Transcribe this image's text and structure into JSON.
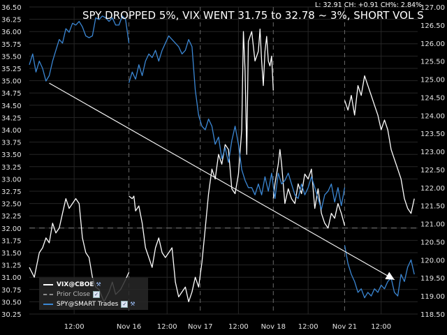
{
  "chart_data": {
    "type": "line",
    "title": "SPY DROPPED 5%, VIX WENT 31.75 to 32.78 ~ 3%, SHORT VOL S",
    "stats_readout": "L: 32.91 CH: +0.91 CH%: 2.84%",
    "grid": true,
    "legend_position": "bottom-left",
    "x_ticks": [
      "12:00",
      "Nov 16",
      "12:00",
      "Nov 17",
      "12:00",
      "Nov 18",
      "12:00",
      "Nov 21",
      "12:00"
    ],
    "x_dashed_ticks": [
      "Nov 16",
      "Nov 17",
      "Nov 18",
      "Nov 21"
    ],
    "y_left": {
      "range": [
        30.25,
        36.5
      ],
      "ticks": [
        "36.50",
        "36.25",
        "36.00",
        "35.75",
        "35.50",
        "35.25",
        "35.00",
        "34.75",
        "34.50",
        "34.25",
        "34.00",
        "33.75",
        "33.50",
        "33.25",
        "33.00",
        "32.75",
        "32.50",
        "32.25",
        "32.00",
        "31.75",
        "31.50",
        "31.25",
        "31.00",
        "30.75",
        "30.50",
        "30.25"
      ]
    },
    "y_right": {
      "range": [
        118.5,
        127.0
      ],
      "ticks": [
        "127.00",
        "126.50",
        "126.00",
        "125.50",
        "125.00",
        "124.50",
        "124.00",
        "123.50",
        "123.00",
        "122.50",
        "122.00",
        "121.50",
        "121.00",
        "120.50",
        "120.00",
        "119.50",
        "119.00",
        "118.50"
      ]
    },
    "prior_close": 32.0,
    "series": [
      {
        "name": "VIX@CBOE",
        "axis": "left",
        "color": "#ffffff",
        "segments": [
          [
            [
              0,
              31.2
            ],
            [
              3,
              31.0
            ],
            [
              6,
              31.5
            ],
            [
              8,
              31.6
            ],
            [
              10,
              31.8
            ],
            [
              12,
              31.7
            ],
            [
              14,
              32.1
            ],
            [
              16,
              31.9
            ],
            [
              18,
              32.0
            ],
            [
              20,
              32.3
            ],
            [
              22,
              32.6
            ],
            [
              24,
              32.4
            ],
            [
              26,
              32.5
            ],
            [
              28,
              32.6
            ],
            [
              30,
              32.5
            ],
            [
              32,
              31.8
            ],
            [
              34,
              31.5
            ],
            [
              36,
              31.4
            ],
            [
              38,
              31.0
            ],
            [
              40,
              30.8
            ],
            [
              42,
              30.75
            ],
            [
              45,
              30.5
            ],
            [
              48,
              30.7
            ],
            [
              50,
              30.9
            ],
            [
              52,
              30.65
            ],
            [
              55,
              30.75
            ],
            [
              58,
              30.95
            ],
            [
              60,
              31.1
            ]
          ],
          [
            [
              60,
              32.65
            ],
            [
              62,
              32.6
            ],
            [
              63,
              32.65
            ],
            [
              64,
              32.35
            ],
            [
              66,
              32.45
            ],
            [
              68,
              32.1
            ],
            [
              70,
              31.6
            ],
            [
              72,
              31.4
            ],
            [
              74,
              31.2
            ],
            [
              76,
              31.6
            ],
            [
              78,
              31.8
            ],
            [
              80,
              31.5
            ],
            [
              82,
              31.4
            ],
            [
              84,
              31.5
            ],
            [
              86,
              31.6
            ],
            [
              88,
              30.9
            ],
            [
              90,
              30.6
            ],
            [
              92,
              30.7
            ],
            [
              94,
              30.8
            ],
            [
              96,
              30.5
            ],
            [
              98,
              30.7
            ],
            [
              100,
              31.0
            ],
            [
              102,
              30.8
            ],
            [
              104,
              31.3
            ],
            [
              106,
              32.0
            ],
            [
              108,
              32.7
            ],
            [
              110,
              33.2
            ],
            [
              112,
              33.0
            ],
            [
              114,
              33.5
            ],
            [
              116,
              33.3
            ],
            [
              118,
              33.7
            ],
            [
              120,
              33.6
            ],
            [
              122,
              32.8
            ],
            [
              124,
              32.7
            ],
            [
              126,
              33.1
            ],
            [
              128,
              34.0
            ],
            [
              129,
              36.0
            ],
            [
              130,
              35.2
            ],
            [
              131,
              33.5
            ],
            [
              132,
              35.8
            ],
            [
              134,
              36.0
            ],
            [
              136,
              35.4
            ],
            [
              138,
              35.6
            ],
            [
              139,
              36.05
            ],
            [
              140,
              35.4
            ],
            [
              141,
              34.9
            ],
            [
              142,
              35.6
            ],
            [
              143,
              35.9
            ],
            [
              144,
              35.4
            ],
            [
              145,
              35.3
            ],
            [
              146,
              35.5
            ],
            [
              147,
              34.8
            ]
          ],
          [
            [
              147,
              32.6
            ],
            [
              148,
              32.9
            ],
            [
              150,
              33.3
            ],
            [
              151,
              33.6
            ],
            [
              152,
              33.3
            ],
            [
              154,
              32.5
            ],
            [
              156,
              32.8
            ],
            [
              158,
              32.6
            ],
            [
              160,
              32.5
            ],
            [
              162,
              32.9
            ],
            [
              164,
              32.7
            ],
            [
              166,
              33.1
            ],
            [
              168,
              33.0
            ],
            [
              170,
              33.2
            ],
            [
              172,
              32.4
            ],
            [
              174,
              32.8
            ],
            [
              176,
              32.3
            ],
            [
              178,
              32.1
            ],
            [
              180,
              32.0
            ],
            [
              182,
              32.3
            ],
            [
              184,
              32.2
            ],
            [
              186,
              32.5
            ],
            [
              188,
              32.3
            ],
            [
              190,
              32.05
            ]
          ],
          [
            [
              190,
              34.6
            ],
            [
              192,
              34.4
            ],
            [
              194,
              34.7
            ],
            [
              196,
              34.3
            ],
            [
              198,
              34.9
            ],
            [
              200,
              34.7
            ],
            [
              202,
              35.1
            ],
            [
              204,
              34.9
            ],
            [
              206,
              34.7
            ],
            [
              208,
              34.5
            ],
            [
              210,
              34.3
            ],
            [
              212,
              34.0
            ],
            [
              214,
              34.2
            ],
            [
              216,
              34.0
            ],
            [
              218,
              33.6
            ],
            [
              220,
              33.4
            ],
            [
              222,
              33.2
            ],
            [
              224,
              33.0
            ],
            [
              226,
              32.6
            ],
            [
              228,
              32.4
            ],
            [
              230,
              32.3
            ],
            [
              232,
              32.6
            ]
          ]
        ]
      },
      {
        "name": "Prior Close",
        "axis": "left",
        "color": "#8c8c8c",
        "dashed": true
      },
      {
        "name": "SPY@SMART Trades",
        "axis": "right",
        "color": "#3b87d4",
        "segments": [
          [
            [
              0,
              125.4
            ],
            [
              2,
              125.7
            ],
            [
              4,
              125.2
            ],
            [
              6,
              125.5
            ],
            [
              8,
              125.3
            ],
            [
              10,
              124.95
            ],
            [
              12,
              125.1
            ],
            [
              14,
              125.5
            ],
            [
              16,
              125.8
            ],
            [
              18,
              126.1
            ],
            [
              20,
              126.0
            ],
            [
              22,
              126.4
            ],
            [
              24,
              126.3
            ],
            [
              26,
              126.55
            ],
            [
              28,
              126.5
            ],
            [
              30,
              126.6
            ],
            [
              32,
              126.45
            ],
            [
              34,
              126.2
            ],
            [
              36,
              126.15
            ],
            [
              38,
              126.2
            ],
            [
              40,
              126.7
            ],
            [
              42,
              126.65
            ],
            [
              44,
              126.75
            ],
            [
              46,
              126.7
            ],
            [
              48,
              126.6
            ],
            [
              50,
              126.7
            ],
            [
              52,
              126.5
            ],
            [
              54,
              126.5
            ],
            [
              56,
              126.75
            ],
            [
              58,
              126.65
            ],
            [
              60,
              126.0
            ]
          ],
          [
            [
              60,
              124.9
            ],
            [
              62,
              125.2
            ],
            [
              64,
              125.0
            ],
            [
              66,
              125.4
            ],
            [
              68,
              125.1
            ],
            [
              70,
              125.5
            ],
            [
              72,
              125.7
            ],
            [
              74,
              125.6
            ],
            [
              76,
              125.8
            ],
            [
              78,
              125.5
            ],
            [
              80,
              125.8
            ],
            [
              82,
              126.0
            ],
            [
              84,
              126.2
            ],
            [
              86,
              126.1
            ],
            [
              88,
              126.0
            ],
            [
              90,
              125.9
            ],
            [
              92,
              125.7
            ],
            [
              94,
              125.8
            ],
            [
              96,
              126.1
            ],
            [
              98,
              125.9
            ],
            [
              100,
              124.7
            ],
            [
              102,
              124.0
            ],
            [
              104,
              123.7
            ],
            [
              106,
              123.6
            ],
            [
              108,
              123.9
            ],
            [
              110,
              123.7
            ],
            [
              112,
              123.2
            ],
            [
              114,
              123.4
            ],
            [
              116,
              122.8
            ],
            [
              118,
              123.1
            ],
            [
              120,
              122.7
            ],
            [
              122,
              123.3
            ],
            [
              124,
              123.7
            ],
            [
              126,
              123.2
            ],
            [
              128,
              122.5
            ],
            [
              130,
              122.2
            ],
            [
              132,
              122.0
            ],
            [
              134,
              122.0
            ],
            [
              136,
              121.8
            ],
            [
              138,
              122.1
            ],
            [
              140,
              121.8
            ],
            [
              142,
              122.3
            ],
            [
              144,
              121.9
            ],
            [
              146,
              122.4
            ],
            [
              148,
              121.7
            ],
            [
              150,
              122.4
            ],
            [
              152,
              122.1
            ],
            [
              154,
              122.2
            ],
            [
              156,
              122.4
            ],
            [
              158,
              122.1
            ],
            [
              160,
              121.8
            ],
            [
              162,
              121.7
            ],
            [
              164,
              122.1
            ],
            [
              166,
              121.8
            ],
            [
              168,
              122.0
            ],
            [
              170,
              122.3
            ],
            [
              172,
              122.0
            ],
            [
              174,
              121.7
            ],
            [
              176,
              121.4
            ],
            [
              178,
              121.8
            ],
            [
              180,
              121.9
            ],
            [
              182,
              122.1
            ],
            [
              184,
              121.6
            ],
            [
              186,
              122.0
            ],
            [
              188,
              121.5
            ],
            [
              190,
              122.0
            ]
          ],
          [
            [
              190,
              120.4
            ],
            [
              192,
              119.9
            ],
            [
              194,
              119.6
            ],
            [
              196,
              119.4
            ],
            [
              198,
              119.1
            ],
            [
              200,
              119.2
            ],
            [
              202,
              118.95
            ],
            [
              204,
              119.1
            ],
            [
              206,
              119.0
            ],
            [
              208,
              119.2
            ],
            [
              210,
              119.1
            ],
            [
              212,
              119.3
            ],
            [
              214,
              119.2
            ],
            [
              216,
              119.4
            ],
            [
              218,
              119.5
            ],
            [
              220,
              119.1
            ],
            [
              222,
              119.0
            ],
            [
              224,
              119.6
            ],
            [
              226,
              119.4
            ],
            [
              228,
              119.8
            ],
            [
              230,
              120.0
            ],
            [
              232,
              119.6
            ]
          ]
        ]
      }
    ],
    "annotation_arrow": {
      "from": [
        12,
        34.95
      ],
      "to": [
        220,
        30.95
      ]
    },
    "legend": [
      {
        "label": "VIX@CBOE",
        "color": "#ffffff"
      },
      {
        "label": "Prior Close",
        "color": "#8c8c8c"
      },
      {
        "label": "SPY@SMART Trades",
        "color": "#3b87d4"
      }
    ]
  }
}
